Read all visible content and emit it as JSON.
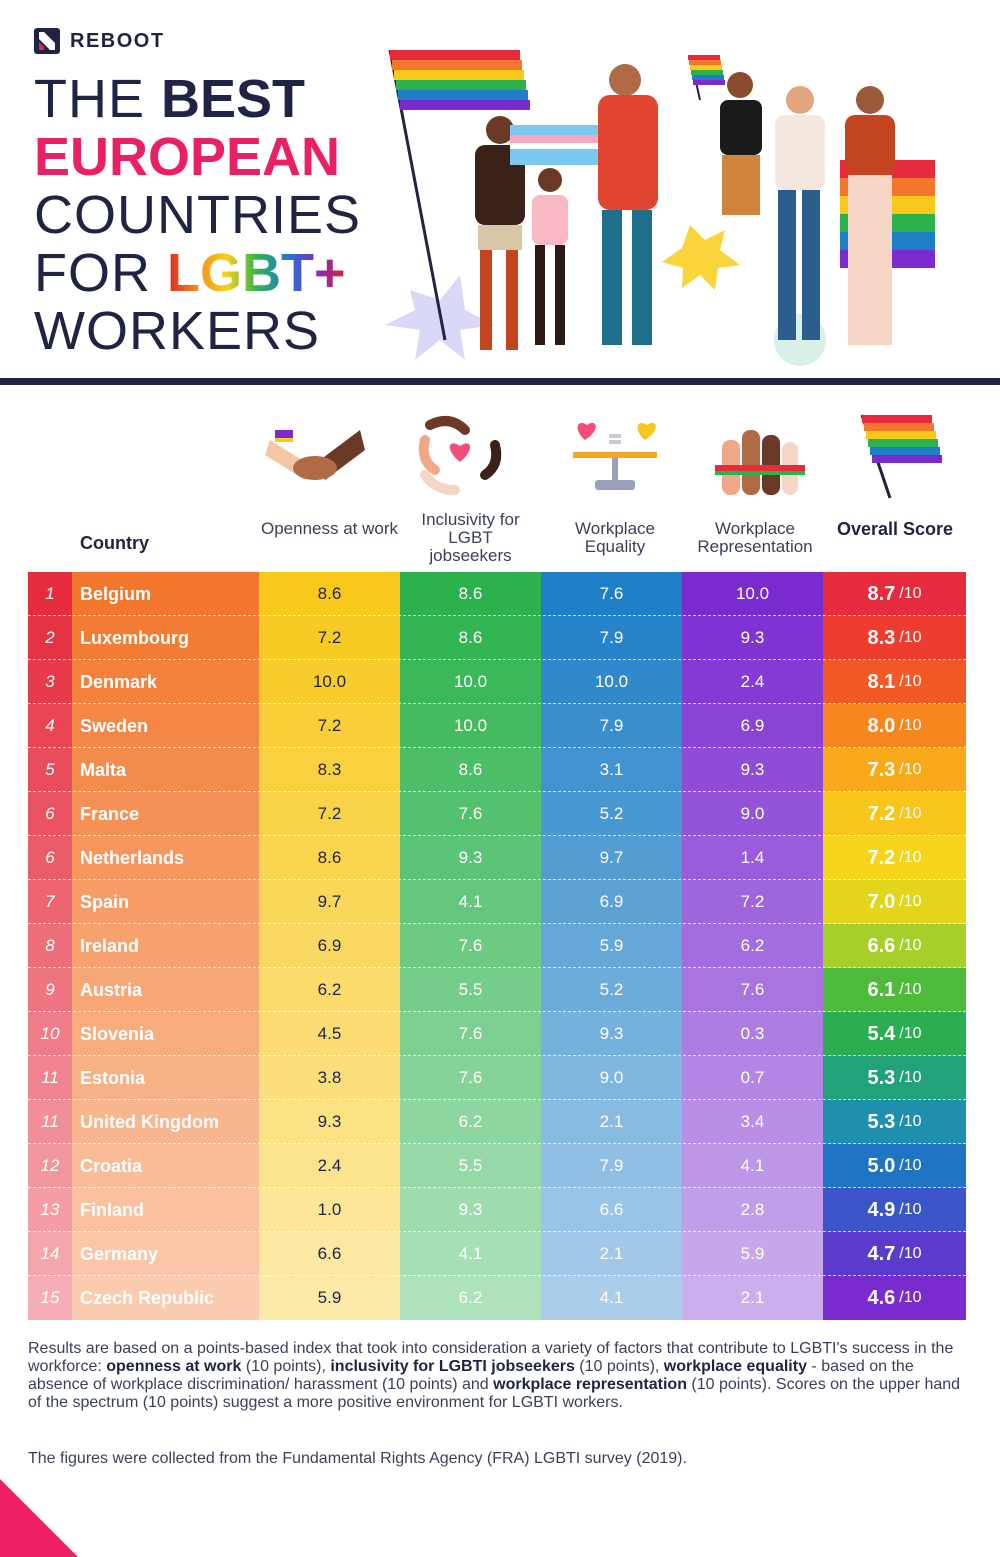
{
  "brand": {
    "name": "REBOOT"
  },
  "title": {
    "line1_light": "THE ",
    "line1_bold": "BEST",
    "line2": "EUROPEAN",
    "line3": "COUNTRIES",
    "line4_light": "FOR ",
    "line4_rainbow": "LGBT+",
    "line5": "WORKERS"
  },
  "colors": {
    "navy": "#1f2344",
    "pink": "#ea1f66",
    "rank_column": "#e52b3c",
    "country_column": "#f2772d",
    "openness_column": "#f8c81b",
    "inclusivity_column": "#2bb24c",
    "equality_column": "#1f7fc6",
    "representation_column": "#7a2bd0"
  },
  "icons": [
    "handshake-icon",
    "hands-heart-icon",
    "scale-hearts-icon",
    "raised-hands-icon",
    "rainbow-flag-icon"
  ],
  "chart_data": {
    "type": "table",
    "columns": [
      {
        "key": "country",
        "label": "Country"
      },
      {
        "key": "openness",
        "label": "Openness at work"
      },
      {
        "key": "inclusivity",
        "label": "Inclusivity for LGBT jobseekers"
      },
      {
        "key": "equality",
        "label": "Workplace Equality"
      },
      {
        "key": "representation",
        "label": "Workplace Representation"
      },
      {
        "key": "overall",
        "label": "Overall Score"
      }
    ],
    "overall_suffix": "/10",
    "rows": [
      {
        "rank": "1",
        "country": "Belgium",
        "openness": "8.6",
        "inclusivity": "8.6",
        "equality": "7.6",
        "representation": "10.0",
        "overall": "8.7"
      },
      {
        "rank": "2",
        "country": "Luxembourg",
        "openness": "7.2",
        "inclusivity": "8.6",
        "equality": "7.9",
        "representation": "9.3",
        "overall": "8.3"
      },
      {
        "rank": "3",
        "country": "Denmark",
        "openness": "10.0",
        "inclusivity": "10.0",
        "equality": "10.0",
        "representation": "2.4",
        "overall": "8.1"
      },
      {
        "rank": "4",
        "country": "Sweden",
        "openness": "7.2",
        "inclusivity": "10.0",
        "equality": "7.9",
        "representation": "6.9",
        "overall": "8.0"
      },
      {
        "rank": "5",
        "country": "Malta",
        "openness": "8.3",
        "inclusivity": "8.6",
        "equality": "3.1",
        "representation": "9.3",
        "overall": "7.3"
      },
      {
        "rank": "6",
        "country": "France",
        "openness": "7.2",
        "inclusivity": "7.6",
        "equality": "5.2",
        "representation": "9.0",
        "overall": "7.2"
      },
      {
        "rank": "6",
        "country": "Netherlands",
        "openness": "8.6",
        "inclusivity": "9.3",
        "equality": "9.7",
        "representation": "1.4",
        "overall": "7.2"
      },
      {
        "rank": "7",
        "country": "Spain",
        "openness": "9.7",
        "inclusivity": "4.1",
        "equality": "6.9",
        "representation": "7.2",
        "overall": "7.0"
      },
      {
        "rank": "8",
        "country": "Ireland",
        "openness": "6.9",
        "inclusivity": "7.6",
        "equality": "5.9",
        "representation": "6.2",
        "overall": "6.6"
      },
      {
        "rank": "9",
        "country": "Austria",
        "openness": "6.2",
        "inclusivity": "5.5",
        "equality": "5.2",
        "representation": "7.6",
        "overall": "6.1"
      },
      {
        "rank": "10",
        "country": "Slovenia",
        "openness": "4.5",
        "inclusivity": "7.6",
        "equality": "9.3",
        "representation": "0.3",
        "overall": "5.4"
      },
      {
        "rank": "11",
        "country": "Estonia",
        "openness": "3.8",
        "inclusivity": "7.6",
        "equality": "9.0",
        "representation": "0.7",
        "overall": "5.3"
      },
      {
        "rank": "11",
        "country": "United Kingdom",
        "openness": "9.3",
        "inclusivity": "6.2",
        "equality": "2.1",
        "representation": "3.4",
        "overall": "5.3"
      },
      {
        "rank": "12",
        "country": "Croatia",
        "openness": "2.4",
        "inclusivity": "5.5",
        "equality": "7.9",
        "representation": "4.1",
        "overall": "5.0"
      },
      {
        "rank": "13",
        "country": "Finland",
        "openness": "1.0",
        "inclusivity": "9.3",
        "equality": "6.6",
        "representation": "2.8",
        "overall": "4.9"
      },
      {
        "rank": "14",
        "country": "Germany",
        "openness": "6.6",
        "inclusivity": "4.1",
        "equality": "2.1",
        "representation": "5.9",
        "overall": "4.7"
      },
      {
        "rank": "15",
        "country": "Czech Republic",
        "openness": "5.9",
        "inclusivity": "6.2",
        "equality": "4.1",
        "representation": "2.1",
        "overall": "4.6"
      }
    ]
  },
  "notes": {
    "t1": "Results are based on a points-based index that took into consideration a variety of factors that contribute to LGBTI's success in the workforce: ",
    "b1": "openness at work",
    "t2": " (10 points), ",
    "b2": "inclusivity for LGBTI jobseekers",
    "t3": " (10 points), ",
    "b3": "workplace equality",
    "t4": " - based on the absence of workplace discrimination/ harassment (10 points) and ",
    "b4": "workplace representation",
    "t5": " (10 points). Scores on the upper hand of the spectrum (10 points) suggest a more positive environment for LGBTI workers."
  },
  "source": "The figures were collected from the Fundamental Rights Agency (FRA) LGBTI survey (2019)."
}
